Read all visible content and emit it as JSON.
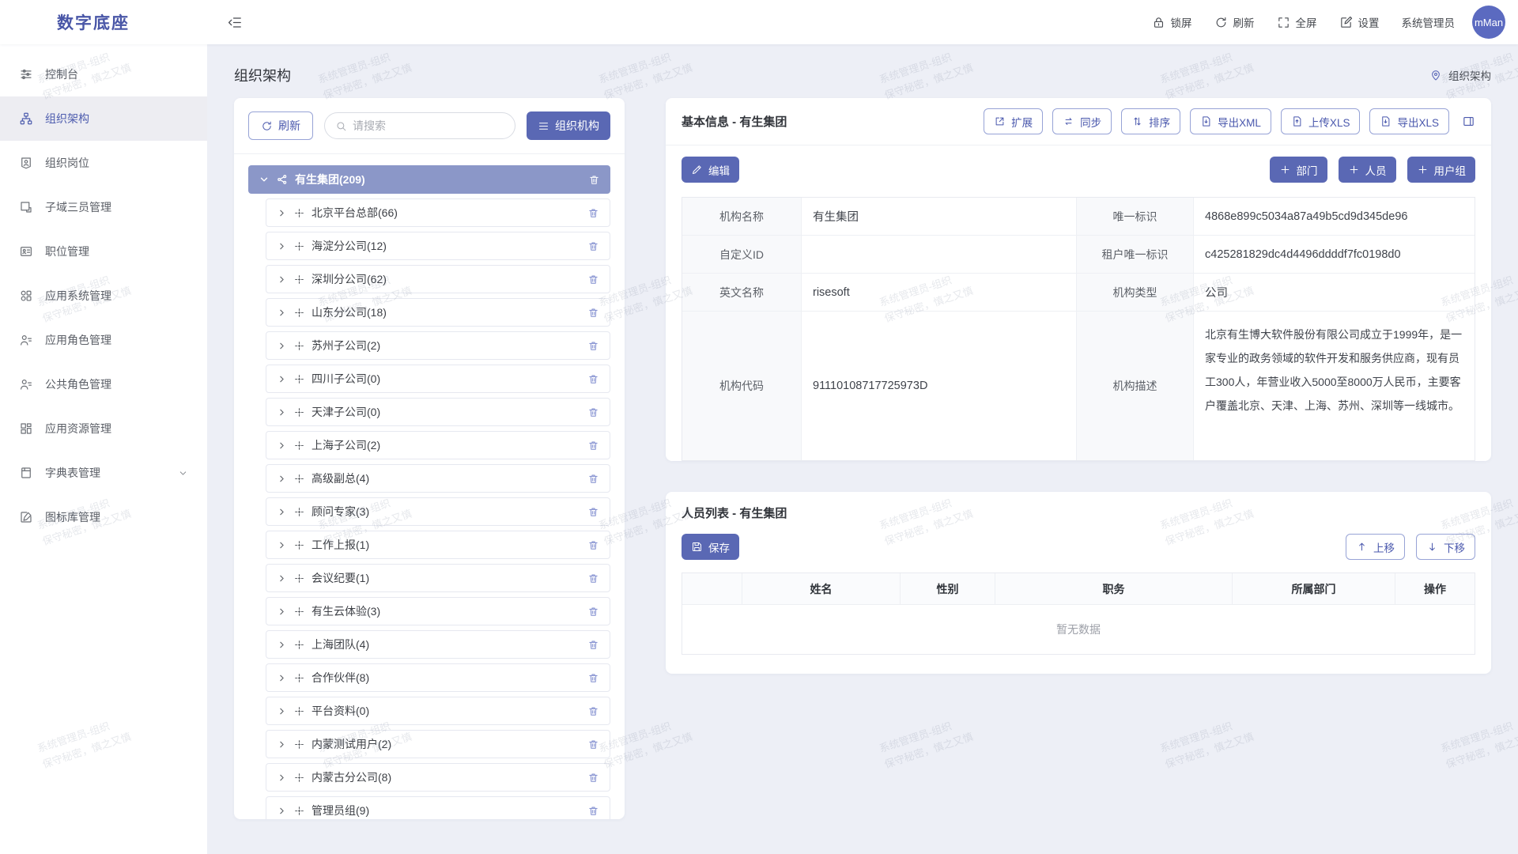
{
  "app": {
    "logo": "数字底座"
  },
  "header": {
    "lock_label": "锁屏",
    "refresh_label": "刷新",
    "fullscreen_label": "全屏",
    "settings_label": "设置",
    "username": "系统管理员",
    "avatar_text": "mMan"
  },
  "sidebar": {
    "items": [
      {
        "label": "控制台"
      },
      {
        "label": "组织架构"
      },
      {
        "label": "组织岗位"
      },
      {
        "label": "子域三员管理"
      },
      {
        "label": "职位管理"
      },
      {
        "label": "应用系统管理"
      },
      {
        "label": "应用角色管理"
      },
      {
        "label": "公共角色管理"
      },
      {
        "label": "应用资源管理"
      },
      {
        "label": "字典表管理"
      },
      {
        "label": "图标库管理"
      }
    ]
  },
  "page": {
    "title": "组织架构",
    "breadcrumb": "组织架构"
  },
  "tree_panel": {
    "refresh_label": "刷新",
    "search_placeholder": "请搜索",
    "org_button_label": "组织机构",
    "root_label": "有生集团(209)",
    "items": [
      "北京平台总部(66)",
      "海淀分公司(12)",
      "深圳分公司(62)",
      "山东分公司(18)",
      "苏州子公司(2)",
      "四川子公司(0)",
      "天津子公司(0)",
      "上海子公司(2)",
      "高级副总(4)",
      "顾问专家(3)",
      "工作上报(1)",
      "会议纪要(1)",
      "有生云体验(3)",
      "上海团队(4)",
      "合作伙伴(8)",
      "平台资料(0)",
      "内蒙测试用户(2)",
      "内蒙古分公司(8)",
      "管理员组(9)"
    ]
  },
  "info_panel": {
    "title": "基本信息 - 有生集团",
    "expand_label": "扩展",
    "sync_label": "同步",
    "sort_label": "排序",
    "export_xml_label": "导出XML",
    "upload_xls_label": "上传XLS",
    "export_xls_label": "导出XLS",
    "edit_label": "编辑",
    "add_dept_label": "部门",
    "add_person_label": "人员",
    "add_group_label": "用户组",
    "fields": {
      "org_name_label": "机构名称",
      "org_name": "有生集团",
      "unique_id_label": "唯一标识",
      "unique_id": "4868e899c5034a87a49b5cd9d345de96",
      "custom_id_label": "自定义ID",
      "custom_id": "",
      "tenant_id_label": "租户唯一标识",
      "tenant_id": "c425281829dc4d4496ddddf7fc0198d0",
      "en_name_label": "英文名称",
      "en_name": "risesoft",
      "org_type_label": "机构类型",
      "org_type": "公司",
      "org_code_label": "机构代码",
      "org_code": "91110108717725973D",
      "org_desc_label": "机构描述",
      "org_desc": "北京有生博大软件股份有限公司成立于1999年，是一家专业的政务领域的软件开发和服务供应商，现有员工300人，年营业收入5000至8000万人民币，主要客户覆盖北京、天津、上海、苏州、深圳等一线城市。"
    }
  },
  "person_panel": {
    "title": "人员列表 - 有生集团",
    "save_label": "保存",
    "move_up_label": "上移",
    "move_down_label": "下移",
    "columns": [
      "",
      "姓名",
      "性别",
      "职务",
      "所属部门",
      "操作"
    ],
    "empty_text": "暂无数据"
  },
  "watermark": {
    "line1": "系统管理员-组织",
    "line2": "保守秘密，慎之又慎"
  },
  "colors": {
    "accent": "#5a68b4",
    "accent_light": "#8b97c8",
    "background": "#edeff6"
  }
}
